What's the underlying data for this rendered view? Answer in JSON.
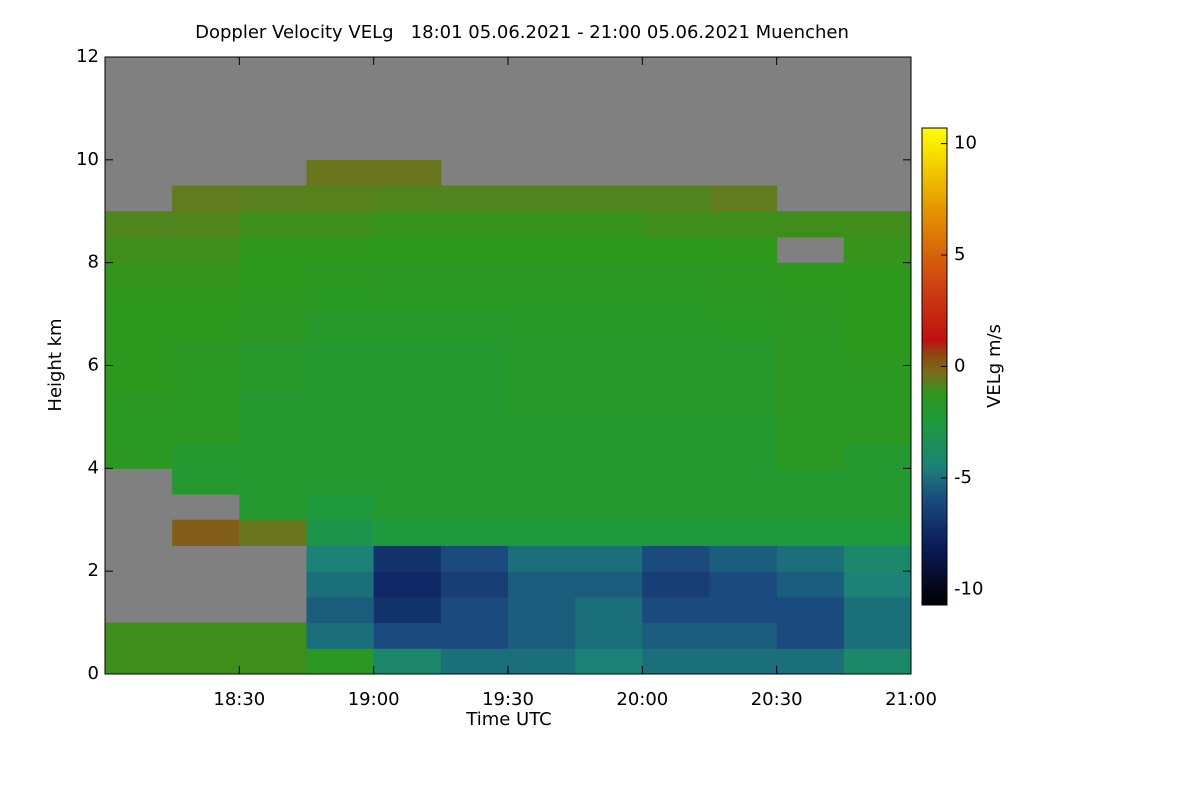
{
  "chart_data": {
    "type": "heatmap",
    "title": "Doppler Velocity VELg   18:01 05.06.2021 - 21:00 05.06.2021 Muenchen",
    "x_label": "Time UTC",
    "y_label": "Height km",
    "colorbar_label": "VELg m/s",
    "xlim": [
      18.0,
      21.0
    ],
    "xticks": [
      {
        "value": 18.5,
        "label": "18:30"
      },
      {
        "value": 19.0,
        "label": "19:00"
      },
      {
        "value": 19.5,
        "label": "19:30"
      },
      {
        "value": 20.0,
        "label": "20:00"
      },
      {
        "value": 20.5,
        "label": "20:30"
      },
      {
        "value": 21.0,
        "label": "21:00"
      }
    ],
    "ylim": [
      0,
      12
    ],
    "yticks": [
      0,
      2,
      4,
      6,
      8,
      10,
      12
    ],
    "clim": [
      -10.7,
      10.7
    ],
    "cticks": [
      -10,
      -5,
      0,
      5,
      10
    ],
    "missing_color": "#808080",
    "colorscale": [
      {
        "value": -10.7,
        "color": "#000000"
      },
      {
        "value": -8,
        "color": "#0c1c5c"
      },
      {
        "value": -6,
        "color": "#1a4a7e"
      },
      {
        "value": -4.5,
        "color": "#1c8278"
      },
      {
        "value": -2.5,
        "color": "#1e9a3c"
      },
      {
        "value": -1.2,
        "color": "#2e981c"
      },
      {
        "value": -0.3,
        "color": "#7a6c1e"
      },
      {
        "value": 0.5,
        "color": "#8c4a10"
      },
      {
        "value": 1.2,
        "color": "#c01010"
      },
      {
        "value": 4,
        "color": "#d04a10"
      },
      {
        "value": 7,
        "color": "#e49400"
      },
      {
        "value": 10.7,
        "color": "#ffff00"
      }
    ],
    "x": [
      18.125,
      18.375,
      18.625,
      18.875,
      19.125,
      19.375,
      19.625,
      19.875,
      20.125,
      20.375,
      20.625,
      20.875
    ],
    "y": [
      0.25,
      0.75,
      1.25,
      1.75,
      2.25,
      2.75,
      3.25,
      3.75,
      4.25,
      4.75,
      5.25,
      5.75,
      6.25,
      6.75,
      7.25,
      7.75,
      8.25,
      8.75,
      9.25,
      9.75,
      10.25,
      10.75,
      11.25,
      11.75
    ],
    "z": [
      [
        -1,
        -1,
        -1,
        -1.5,
        -4,
        -5,
        -5,
        -4.5,
        -5,
        -5,
        -5,
        -4
      ],
      [
        -1,
        -1,
        -1,
        -5,
        -6,
        -6,
        -5.5,
        -5,
        -5.5,
        -5.5,
        -6,
        -5
      ],
      [
        null,
        null,
        null,
        -5.5,
        -7,
        -6,
        -5.5,
        -5,
        -6,
        -6,
        -6,
        -5
      ],
      [
        null,
        null,
        null,
        -5,
        -7.5,
        -6.5,
        -5.5,
        -5.5,
        -6.5,
        -6,
        -5.5,
        -4.5
      ],
      [
        null,
        null,
        null,
        -4.5,
        -7,
        -6,
        -5,
        -5,
        -6,
        -5.5,
        -5,
        -4
      ],
      [
        null,
        0,
        -0.5,
        -3,
        -2.5,
        -2.5,
        -2.5,
        -2.5,
        -2.5,
        -2.5,
        -2.5,
        -2.5
      ],
      [
        null,
        null,
        -2,
        -2.5,
        -2,
        -2,
        -2,
        -2,
        -2,
        -2,
        -2,
        -2
      ],
      [
        null,
        -2,
        -2,
        -2,
        -2,
        -2,
        -2,
        -2,
        -2,
        -2,
        -2,
        -2
      ],
      [
        -1.5,
        -2,
        -2,
        -2,
        -2,
        -2,
        -2,
        -2,
        -2,
        -2,
        -1.5,
        -2
      ],
      [
        -1.5,
        -1.5,
        -2,
        -2,
        -2,
        -2,
        -2,
        -2,
        -2,
        -2,
        -1.5,
        -1.5
      ],
      [
        -1.5,
        -1.5,
        -2,
        -2,
        -2,
        -2,
        -1.8,
        -1.8,
        -1.8,
        -1.8,
        -1.5,
        -1.5
      ],
      [
        -1.3,
        -1.5,
        -1.8,
        -2,
        -2,
        -2,
        -1.8,
        -1.8,
        -1.8,
        -1.8,
        -1.5,
        -1.5
      ],
      [
        -1.3,
        -1.5,
        -1.8,
        -2,
        -2,
        -2,
        -1.8,
        -1.8,
        -1.8,
        -1.8,
        -1.5,
        -1.3
      ],
      [
        -1.2,
        -1.3,
        -1.5,
        -1.8,
        -1.8,
        -1.8,
        -1.7,
        -1.7,
        -1.7,
        -1.6,
        -1.5,
        -1.3
      ],
      [
        -1.2,
        -1.2,
        -1.4,
        -1.6,
        -1.6,
        -1.6,
        -1.6,
        -1.6,
        -1.6,
        -1.5,
        -1.4,
        -1.3
      ],
      [
        -1.1,
        -1.1,
        -1.3,
        -1.4,
        -1.5,
        -1.5,
        -1.5,
        -1.5,
        -1.5,
        -1.4,
        -1.3,
        -1.2
      ],
      [
        -1,
        -1,
        -1.2,
        -1.2,
        -1.3,
        -1.3,
        -1.3,
        -1.3,
        -1.3,
        -1.2,
        null,
        -1.1
      ],
      [
        -0.8,
        -0.8,
        -1,
        -1,
        -1.1,
        -1.1,
        -1.1,
        -1.1,
        -1,
        -1,
        -1,
        -1
      ],
      [
        null,
        -0.6,
        -0.7,
        -0.7,
        -0.8,
        -0.8,
        -0.8,
        -0.8,
        -0.8,
        -0.6,
        null,
        null
      ],
      [
        null,
        null,
        null,
        -0.5,
        -0.5,
        null,
        null,
        null,
        null,
        null,
        null,
        null
      ],
      [
        null,
        null,
        null,
        null,
        null,
        null,
        null,
        null,
        null,
        null,
        null,
        null
      ],
      [
        null,
        null,
        null,
        null,
        null,
        null,
        null,
        null,
        null,
        null,
        null,
        null
      ],
      [
        null,
        null,
        null,
        null,
        null,
        null,
        null,
        null,
        null,
        null,
        null,
        null
      ],
      [
        null,
        null,
        null,
        null,
        null,
        null,
        null,
        null,
        null,
        null,
        null,
        null
      ]
    ]
  }
}
